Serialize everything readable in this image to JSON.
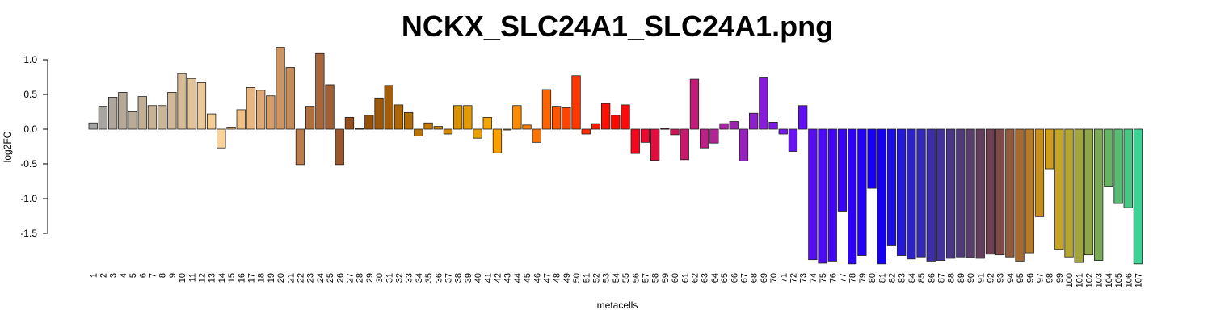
{
  "chart_data": {
    "type": "bar",
    "title": "NCKX_SLC24A1_SLC24A1.png",
    "xlabel": "metacells",
    "ylabel": "log2FC",
    "ylim": [
      -1.96,
      1.2
    ],
    "yticks": [
      -1.5,
      -1.0,
      -0.5,
      0.0,
      0.5,
      1.0
    ],
    "ytick_labels": [
      "-1.5",
      "-1.0",
      "-0.5",
      "0.0",
      "0.5",
      "1.0"
    ],
    "grid": false,
    "legend": "none",
    "categories": [
      "1",
      "2",
      "3",
      "4",
      "5",
      "6",
      "7",
      "8",
      "9",
      "10",
      "11",
      "12",
      "13",
      "14",
      "15",
      "16",
      "17",
      "18",
      "19",
      "20",
      "21",
      "22",
      "23",
      "24",
      "25",
      "26",
      "27",
      "28",
      "29",
      "30",
      "31",
      "32",
      "33",
      "34",
      "35",
      "36",
      "37",
      "38",
      "39",
      "40",
      "41",
      "42",
      "43",
      "44",
      "45",
      "46",
      "47",
      "48",
      "49",
      "50",
      "51",
      "52",
      "53",
      "54",
      "55",
      "56",
      "57",
      "58",
      "59",
      "60",
      "61",
      "62",
      "63",
      "64",
      "65",
      "66",
      "67",
      "68",
      "69",
      "70",
      "71",
      "72",
      "73",
      "74",
      "75",
      "76",
      "77",
      "78",
      "79",
      "80",
      "81",
      "82",
      "83",
      "84",
      "85",
      "86",
      "87",
      "88",
      "89",
      "90",
      "91",
      "92",
      "93",
      "94",
      "95",
      "96",
      "97",
      "98",
      "99",
      "100",
      "101",
      "102",
      "103",
      "104",
      "105",
      "106",
      "107"
    ],
    "values": [
      0.09,
      0.33,
      0.46,
      0.53,
      0.25,
      0.47,
      0.34,
      0.34,
      0.53,
      0.8,
      0.73,
      0.67,
      0.22,
      -0.27,
      0.03,
      0.28,
      0.6,
      0.56,
      0.48,
      1.18,
      0.89,
      -0.51,
      0.33,
      1.09,
      0.64,
      -0.51,
      0.17,
      0.01,
      0.2,
      0.45,
      0.63,
      0.35,
      0.24,
      -0.1,
      0.09,
      0.04,
      -0.07,
      0.34,
      0.34,
      -0.13,
      0.17,
      -0.34,
      0.0,
      0.34,
      0.06,
      -0.19,
      0.57,
      0.33,
      0.31,
      0.77,
      -0.07,
      0.08,
      0.37,
      0.2,
      0.35,
      -0.35,
      -0.19,
      -0.45,
      0.01,
      -0.08,
      -0.44,
      0.72,
      -0.27,
      -0.2,
      0.08,
      0.11,
      -0.46,
      0.23,
      0.75,
      0.1,
      -0.07,
      -0.32,
      0.34,
      -1.88,
      -1.93,
      -1.9,
      -1.18,
      -1.94,
      -1.82,
      -0.85,
      -1.94,
      -1.68,
      -1.82,
      -1.87,
      -1.84,
      -1.9,
      -1.89,
      -1.86,
      -1.84,
      -1.85,
      -1.86,
      -1.8,
      -1.81,
      -1.84,
      -1.9,
      -1.78,
      -1.26,
      -0.57,
      -1.73,
      -1.84,
      -1.92,
      -1.81,
      -1.89,
      -0.82,
      -1.07,
      -1.13,
      -1.94
    ],
    "colors": [
      "#a3a3a3",
      "#a8a49f",
      "#aea69b",
      "#b4a897",
      "#baab96",
      "#c0af95",
      "#c6b294",
      "#cbb597",
      "#d1b896",
      "#d7bb97",
      "#e1c299",
      "#edc997",
      "#f3cd95",
      "#fad39a",
      "#f5c88f",
      "#efbf86",
      "#e9b67d",
      "#dda873",
      "#d39c68",
      "#cd9562",
      "#c68c58",
      "#ba7d4b",
      "#b06f3d",
      "#a8663a",
      "#a15f33",
      "#9a562c",
      "#964f1c",
      "#8f4a10",
      "#965108",
      "#9e5808",
      "#a55e08",
      "#ac6607",
      "#b36d06",
      "#bb7404",
      "#c37b03",
      "#cb8302",
      "#d38a02",
      "#db9201",
      "#e39901",
      "#ebA102",
      "#f5a500",
      "#fc9e00",
      "#ff9700",
      "#ff8b00",
      "#ff7e00",
      "#ff7300",
      "#ff6400",
      "#ff5300",
      "#ff4400",
      "#ff3700",
      "#ff2a00",
      "#ff1c00",
      "#ff1000",
      "#ff0700",
      "#ff0a0a",
      "#f5061f",
      "#eb0a2f",
      "#e20e3d",
      "#d8124c",
      "#cd165a",
      "#c81a6a",
      "#c11d78",
      "#ba2086",
      "#b22394",
      "#aa23a2",
      "#9f22b0",
      "#9621bf",
      "#8e1fcc",
      "#851dd9",
      "#7c1ae4",
      "#7317ec",
      "#6a13f2",
      "#6110f5",
      "#560cf5",
      "#4c09f5",
      "#4206f5",
      "#3804f5",
      "#2d02f5",
      "#2201f5",
      "#1700f5",
      "#1500f2",
      "#1d0ee5",
      "#2518d6",
      "#2d22c7",
      "#3428b8",
      "#3b2ea8",
      "#433299",
      "#4a3689",
      "#513a7a",
      "#5a3d6b",
      "#633f5c",
      "#6d3f50",
      "#7f4a45",
      "#925a3a",
      "#a56a30",
      "#b87a26",
      "#c88e1c",
      "#d09c1a",
      "#c6a425",
      "#b5a630",
      "#a1a53c",
      "#8ea648",
      "#7aaa55",
      "#66b362",
      "#55bc72",
      "#47c783",
      "#3ad395"
    ]
  }
}
